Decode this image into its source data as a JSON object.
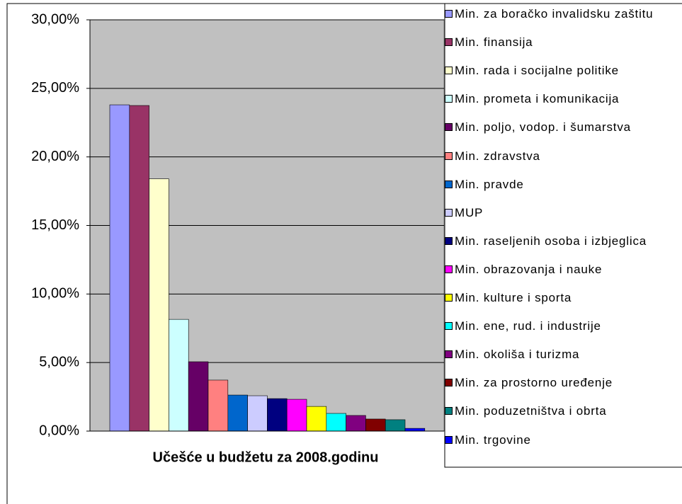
{
  "chart_data": {
    "type": "bar",
    "title": "Učešće u budžetu za 2008.godinu",
    "categories": [
      "Min. za boračko invalidsku zaštitu",
      "Min. finansija",
      "Min. rada i socijalne politike",
      "Min. prometa i komunikacija",
      "Min. poljo, vodop. i šumarstva",
      "Min. zdravstva",
      "Min. pravde",
      "MUP",
      "Min. raseljenih osoba i izbjeglica",
      "Min. obrazovanja i nauke",
      "Min. kulture i sporta",
      "Min. ene, rud. i industrije",
      "Min. okoliša i turizma",
      "Min. za prostorno uređenje",
      "Min. poduzetništva i obrta",
      "Min. trgovine"
    ],
    "values": [
      23.8,
      23.75,
      18.4,
      8.15,
      5.06,
      3.72,
      2.63,
      2.58,
      2.37,
      2.32,
      1.8,
      1.29,
      1.14,
      0.88,
      0.83,
      0.2
    ],
    "colors": [
      "#9999ff",
      "#993366",
      "#ffffcc",
      "#ccffff",
      "#660066",
      "#ff8080",
      "#0066cc",
      "#ccccff",
      "#000080",
      "#ff00ff",
      "#ffff00",
      "#00ffff",
      "#800080",
      "#800000",
      "#008080",
      "#0000ff"
    ],
    "ylim": [
      0,
      30
    ],
    "yticks": [
      {
        "value": 0,
        "label": "0,00%"
      },
      {
        "value": 5,
        "label": "5,00%"
      },
      {
        "value": 10,
        "label": "10,00%"
      },
      {
        "value": 15,
        "label": "15,00%"
      },
      {
        "value": 20,
        "label": "20,00%"
      },
      {
        "value": 25,
        "label": "25,00%"
      },
      {
        "value": 30,
        "label": "30,00%"
      }
    ],
    "grid": true,
    "legend": "right"
  }
}
